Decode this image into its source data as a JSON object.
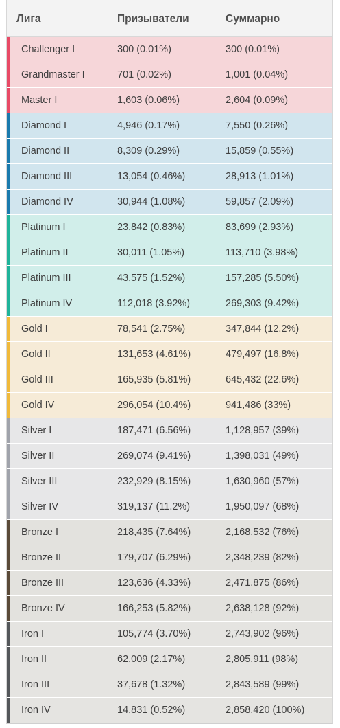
{
  "header": {
    "col1": "Лига",
    "col2": "Призыватели",
    "col3": "Суммарно"
  },
  "tiers": {
    "challenger": {
      "bg": "#f6d6d9",
      "accent": "#e84a66"
    },
    "diamond": {
      "bg": "#d1e5ee",
      "accent": "#1a7aad"
    },
    "platinum": {
      "bg": "#d1eeea",
      "accent": "#1fb39a"
    },
    "gold": {
      "bg": "#f6ebd7",
      "accent": "#f0b93a"
    },
    "silver": {
      "bg": "#e7e7e8",
      "accent": "#a0a3ab"
    },
    "bronze": {
      "bg": "#e3e2de",
      "accent": "#5a4a38"
    },
    "iron": {
      "bg": "#e5e4e1",
      "accent": "#54575a"
    }
  },
  "rows": [
    {
      "league": "Challenger I",
      "summoners": "300 (0.01%)",
      "total": "300 (0.01%)",
      "tier": "challenger"
    },
    {
      "league": "Grandmaster I",
      "summoners": "701 (0.02%)",
      "total": "1,001 (0.04%)",
      "tier": "challenger"
    },
    {
      "league": "Master I",
      "summoners": "1,603 (0.06%)",
      "total": "2,604 (0.09%)",
      "tier": "challenger"
    },
    {
      "league": "Diamond I",
      "summoners": "4,946 (0.17%)",
      "total": "7,550 (0.26%)",
      "tier": "diamond"
    },
    {
      "league": "Diamond II",
      "summoners": "8,309 (0.29%)",
      "total": "15,859 (0.55%)",
      "tier": "diamond"
    },
    {
      "league": "Diamond III",
      "summoners": "13,054 (0.46%)",
      "total": "28,913 (1.01%)",
      "tier": "diamond"
    },
    {
      "league": "Diamond IV",
      "summoners": "30,944 (1.08%)",
      "total": "59,857 (2.09%)",
      "tier": "diamond"
    },
    {
      "league": "Platinum I",
      "summoners": "23,842 (0.83%)",
      "total": "83,699 (2.93%)",
      "tier": "platinum"
    },
    {
      "league": "Platinum II",
      "summoners": "30,011 (1.05%)",
      "total": "113,710 (3.98%)",
      "tier": "platinum"
    },
    {
      "league": "Platinum III",
      "summoners": "43,575 (1.52%)",
      "total": "157,285 (5.50%)",
      "tier": "platinum"
    },
    {
      "league": "Platinum IV",
      "summoners": "112,018 (3.92%)",
      "total": "269,303 (9.42%)",
      "tier": "platinum"
    },
    {
      "league": "Gold I",
      "summoners": "78,541 (2.75%)",
      "total": "347,844 (12.2%)",
      "tier": "gold"
    },
    {
      "league": "Gold II",
      "summoners": "131,653 (4.61%)",
      "total": "479,497 (16.8%)",
      "tier": "gold"
    },
    {
      "league": "Gold III",
      "summoners": "165,935 (5.81%)",
      "total": "645,432 (22.6%)",
      "tier": "gold"
    },
    {
      "league": "Gold IV",
      "summoners": "296,054 (10.4%)",
      "total": "941,486 (33%)",
      "tier": "gold"
    },
    {
      "league": "Silver I",
      "summoners": "187,471 (6.56%)",
      "total": "1,128,957 (39%)",
      "tier": "silver"
    },
    {
      "league": "Silver II",
      "summoners": "269,074 (9.41%)",
      "total": "1,398,031 (49%)",
      "tier": "silver"
    },
    {
      "league": "Silver III",
      "summoners": "232,929 (8.15%)",
      "total": "1,630,960 (57%)",
      "tier": "silver"
    },
    {
      "league": "Silver IV",
      "summoners": "319,137 (11.2%)",
      "total": "1,950,097 (68%)",
      "tier": "silver"
    },
    {
      "league": "Bronze I",
      "summoners": "218,435 (7.64%)",
      "total": "2,168,532 (76%)",
      "tier": "bronze"
    },
    {
      "league": "Bronze II",
      "summoners": "179,707 (6.29%)",
      "total": "2,348,239 (82%)",
      "tier": "bronze"
    },
    {
      "league": "Bronze III",
      "summoners": "123,636 (4.33%)",
      "total": "2,471,875 (86%)",
      "tier": "bronze"
    },
    {
      "league": "Bronze IV",
      "summoners": "166,253 (5.82%)",
      "total": "2,638,128 (92%)",
      "tier": "bronze"
    },
    {
      "league": "Iron I",
      "summoners": "105,774 (3.70%)",
      "total": "2,743,902 (96%)",
      "tier": "iron"
    },
    {
      "league": "Iron II",
      "summoners": "62,009 (2.17%)",
      "total": "2,805,911 (98%)",
      "tier": "iron"
    },
    {
      "league": "Iron III",
      "summoners": "37,678 (1.32%)",
      "total": "2,843,589 (99%)",
      "tier": "iron"
    },
    {
      "league": "Iron IV",
      "summoners": "14,831 (0.52%)",
      "total": "2,858,420 (100%)",
      "tier": "iron"
    }
  ]
}
